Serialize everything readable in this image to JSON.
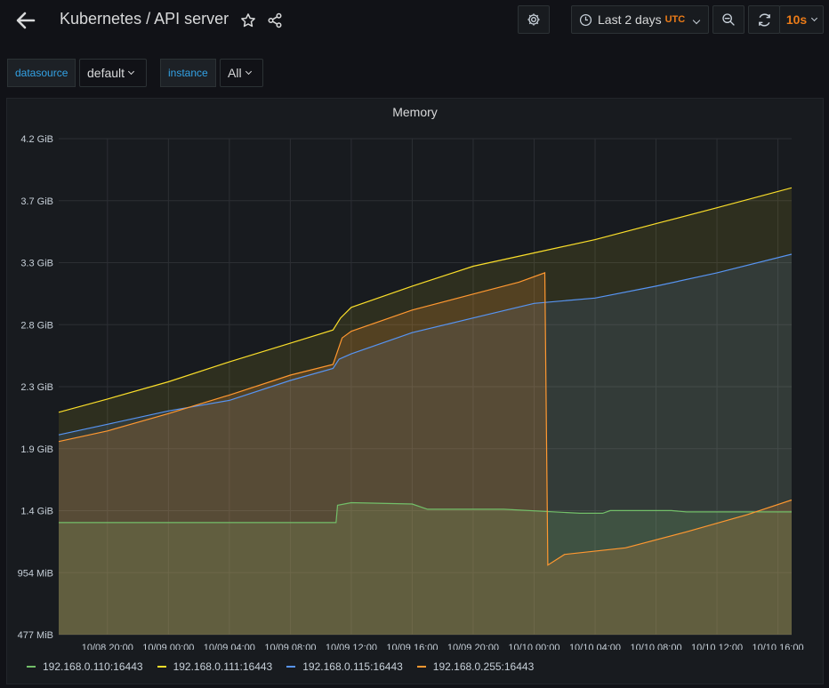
{
  "header": {
    "title": "Kubernetes / API server",
    "time_range": "Last 2 days",
    "timezone": "UTC",
    "refresh_interval": "10s"
  },
  "variables": [
    {
      "label": "datasource",
      "value": "default"
    },
    {
      "label": "instance",
      "value": "All"
    }
  ],
  "colors": {
    "accent": "#eb7b18",
    "link": "#33a2e5",
    "series_110": "#73bf69",
    "series_111": "#fade2a",
    "series_115": "#5794f2",
    "series_255": "#ff9830"
  },
  "icons": [
    "back-arrow-icon",
    "star-icon",
    "share-icon",
    "settings-icon",
    "clock-icon",
    "zoom-out-icon",
    "refresh-icon"
  ],
  "chart_data": {
    "type": "area",
    "title": "Memory",
    "y_tick_labels": [
      "477 MiB",
      "954 MiB",
      "1.4 GiB",
      "1.9 GiB",
      "2.3 GiB",
      "2.8 GiB",
      "3.3 GiB",
      "3.7 GiB",
      "4.2 GiB"
    ],
    "ylim_gib": [
      0.466,
      4.2
    ],
    "x_tick_labels": [
      "10/08 20:00",
      "10/09 00:00",
      "10/09 04:00",
      "10/09 08:00",
      "10/09 12:00",
      "10/09 16:00",
      "10/09 20:00",
      "10/10 00:00",
      "10/10 04:00",
      "10/10 08:00",
      "10/10 12:00",
      "10/10 16:00"
    ],
    "x_hours_range": [
      -3.2,
      44.9
    ],
    "grid": true,
    "legend_position": "bottom",
    "series": [
      {
        "name": "192.168.0.110:16443",
        "color": "#73bf69",
        "points": [
          [
            -3.2,
            1.31
          ],
          [
            15,
            1.31
          ],
          [
            15.1,
            1.44
          ],
          [
            16,
            1.46
          ],
          [
            20,
            1.45
          ],
          [
            21,
            1.41
          ],
          [
            26,
            1.41
          ],
          [
            31,
            1.38
          ],
          [
            32.5,
            1.38
          ],
          [
            33,
            1.4
          ],
          [
            37,
            1.4
          ],
          [
            38,
            1.39
          ],
          [
            44.9,
            1.39
          ]
        ]
      },
      {
        "name": "192.168.0.111:16443",
        "color": "#fade2a",
        "points": [
          [
            -3.2,
            2.14
          ],
          [
            0,
            2.24
          ],
          [
            4,
            2.37
          ],
          [
            8,
            2.52
          ],
          [
            12,
            2.66
          ],
          [
            14.8,
            2.76
          ],
          [
            15.3,
            2.85
          ],
          [
            16,
            2.93
          ],
          [
            20,
            3.09
          ],
          [
            24,
            3.24
          ],
          [
            28,
            3.34
          ],
          [
            32,
            3.44
          ],
          [
            36,
            3.56
          ],
          [
            40,
            3.68
          ],
          [
            44.9,
            3.83
          ]
        ]
      },
      {
        "name": "192.168.0.115:16443",
        "color": "#5794f2",
        "points": [
          [
            -3.2,
            1.97
          ],
          [
            0,
            2.05
          ],
          [
            4,
            2.15
          ],
          [
            8,
            2.23
          ],
          [
            12,
            2.38
          ],
          [
            14.8,
            2.47
          ],
          [
            15.2,
            2.54
          ],
          [
            16,
            2.58
          ],
          [
            20,
            2.74
          ],
          [
            24,
            2.85
          ],
          [
            28,
            2.96
          ],
          [
            32,
            3.0
          ],
          [
            36,
            3.09
          ],
          [
            40,
            3.19
          ],
          [
            44.9,
            3.33
          ]
        ]
      },
      {
        "name": "192.168.0.255:16443",
        "color": "#ff9830",
        "points": [
          [
            -3.2,
            1.92
          ],
          [
            0,
            2.0
          ],
          [
            4,
            2.13
          ],
          [
            8,
            2.27
          ],
          [
            12,
            2.42
          ],
          [
            14.8,
            2.5
          ],
          [
            15.4,
            2.7
          ],
          [
            16,
            2.75
          ],
          [
            20,
            2.91
          ],
          [
            24,
            3.03
          ],
          [
            27,
            3.12
          ],
          [
            28.7,
            3.19
          ],
          [
            28.9,
            0.99
          ],
          [
            30,
            1.07
          ],
          [
            34,
            1.12
          ],
          [
            38,
            1.24
          ],
          [
            42,
            1.37
          ],
          [
            44.9,
            1.48
          ]
        ]
      }
    ]
  }
}
